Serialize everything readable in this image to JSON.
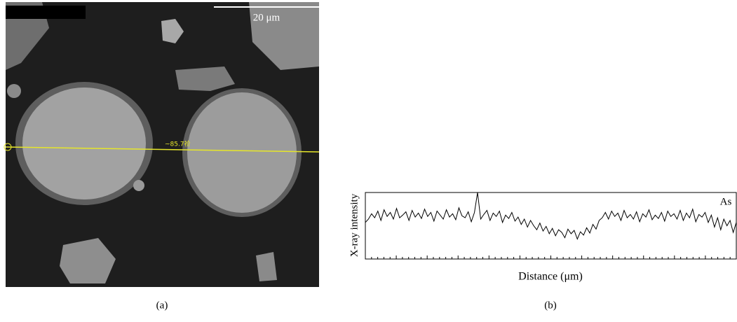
{
  "image": {
    "scale_bar": "20 μm",
    "line_label": "~85.7祄"
  },
  "captions": [
    "(a)",
    "(b)"
  ],
  "chart_data": {
    "type": "line",
    "ylabel": "X-ray intensity",
    "xlabel": "Distance (μm)",
    "ylim": [
      0,
      100
    ],
    "series": [
      {
        "name": "As",
        "color": "#000000",
        "values": [
          55,
          60,
          68,
          62,
          72,
          58,
          74,
          64,
          70,
          60,
          76,
          62,
          66,
          71,
          58,
          73,
          63,
          69,
          61,
          75,
          64,
          70,
          57,
          72,
          66,
          60,
          74,
          63,
          68,
          59,
          77,
          65,
          62,
          71,
          56,
          70,
          100,
          60,
          67,
          73,
          58,
          69,
          64,
          72,
          55,
          66,
          61,
          70,
          57,
          63,
          52,
          60,
          48,
          58,
          50,
          44,
          54,
          42,
          49,
          38,
          46,
          35,
          44,
          40,
          32,
          45,
          38,
          43,
          30,
          41,
          36,
          47,
          39,
          52,
          45,
          58,
          62,
          70,
          60,
          72,
          64,
          69,
          58,
          73,
          62,
          67,
          60,
          71,
          56,
          68,
          63,
          74,
          59,
          66,
          61,
          70,
          57,
          72,
          64,
          68,
          60,
          73,
          58,
          69,
          62,
          75,
          56,
          67,
          63,
          70,
          55,
          66,
          48,
          62,
          44,
          60,
          50,
          58,
          40,
          55
        ]
      }
    ]
  }
}
